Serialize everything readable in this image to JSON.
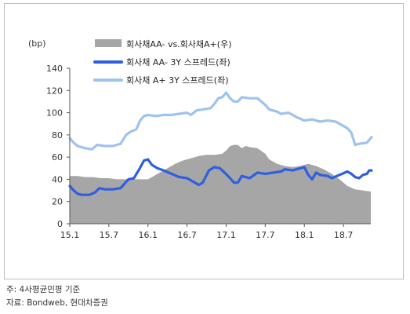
{
  "chart_data": {
    "type": "line",
    "unit_label": "(bp)",
    "y_ticks": [
      0,
      20,
      40,
      60,
      80,
      100,
      120,
      140
    ],
    "ylim": [
      0,
      140
    ],
    "x_ticks": [
      "15.1",
      "15.7",
      "16.1",
      "16.7",
      "17.1",
      "17.7",
      "18.1",
      "18.7"
    ],
    "x_tick_positions": [
      2015.0,
      2015.5,
      2016.0,
      2016.5,
      2017.0,
      2017.5,
      2018.0,
      2018.5
    ],
    "xlim": [
      2015.0,
      2018.85
    ],
    "legend_position": "top-center",
    "series": [
      {
        "name": "회사채AA- vs.회사채A+(우)",
        "kind": "area",
        "color": "#a6a6a6",
        "points": [
          [
            2015.0,
            43
          ],
          [
            2015.1,
            43
          ],
          [
            2015.2,
            42
          ],
          [
            2015.3,
            42
          ],
          [
            2015.4,
            41
          ],
          [
            2015.5,
            41
          ],
          [
            2015.6,
            40
          ],
          [
            2015.7,
            40
          ],
          [
            2015.8,
            40
          ],
          [
            2015.9,
            40
          ],
          [
            2016.0,
            40
          ],
          [
            2016.05,
            42
          ],
          [
            2016.15,
            46
          ],
          [
            2016.25,
            50
          ],
          [
            2016.35,
            54
          ],
          [
            2016.45,
            57
          ],
          [
            2016.55,
            59
          ],
          [
            2016.65,
            61
          ],
          [
            2016.75,
            62
          ],
          [
            2016.85,
            62
          ],
          [
            2016.95,
            63
          ],
          [
            2017.0,
            66
          ],
          [
            2017.05,
            70
          ],
          [
            2017.1,
            71
          ],
          [
            2017.15,
            71
          ],
          [
            2017.2,
            68
          ],
          [
            2017.25,
            70
          ],
          [
            2017.3,
            69
          ],
          [
            2017.4,
            68
          ],
          [
            2017.5,
            63
          ],
          [
            2017.55,
            58
          ],
          [
            2017.65,
            54
          ],
          [
            2017.75,
            52
          ],
          [
            2017.85,
            51
          ],
          [
            2017.95,
            52
          ],
          [
            2018.05,
            54
          ],
          [
            2018.15,
            52
          ],
          [
            2018.25,
            49
          ],
          [
            2018.35,
            45
          ],
          [
            2018.45,
            40
          ],
          [
            2018.55,
            34
          ],
          [
            2018.65,
            31
          ],
          [
            2018.75,
            30
          ],
          [
            2018.85,
            29
          ]
        ]
      },
      {
        "name": "회사채 AA- 3Y 스프레드(좌)",
        "kind": "line",
        "color": "#2f5fe0",
        "points": [
          [
            2015.0,
            34
          ],
          [
            2015.05,
            30
          ],
          [
            2015.1,
            27
          ],
          [
            2015.15,
            26
          ],
          [
            2015.25,
            26
          ],
          [
            2015.32,
            28
          ],
          [
            2015.38,
            32
          ],
          [
            2015.45,
            31
          ],
          [
            2015.55,
            31
          ],
          [
            2015.65,
            32
          ],
          [
            2015.75,
            40
          ],
          [
            2015.82,
            41
          ],
          [
            2015.88,
            48
          ],
          [
            2015.95,
            57
          ],
          [
            2016.0,
            58
          ],
          [
            2016.05,
            53
          ],
          [
            2016.12,
            50
          ],
          [
            2016.2,
            48
          ],
          [
            2016.3,
            45
          ],
          [
            2016.4,
            42
          ],
          [
            2016.5,
            41
          ],
          [
            2016.55,
            39
          ],
          [
            2016.65,
            35
          ],
          [
            2016.7,
            37
          ],
          [
            2016.78,
            48
          ],
          [
            2016.85,
            51
          ],
          [
            2016.92,
            50
          ],
          [
            2016.98,
            46
          ],
          [
            2017.05,
            41
          ],
          [
            2017.1,
            37
          ],
          [
            2017.15,
            37
          ],
          [
            2017.2,
            43
          ],
          [
            2017.3,
            41
          ],
          [
            2017.4,
            46
          ],
          [
            2017.5,
            45
          ],
          [
            2017.6,
            46
          ],
          [
            2017.7,
            47
          ],
          [
            2017.75,
            49
          ],
          [
            2017.85,
            48
          ],
          [
            2017.95,
            50
          ],
          [
            2018.0,
            51
          ],
          [
            2018.05,
            44
          ],
          [
            2018.1,
            40
          ],
          [
            2018.15,
            46
          ],
          [
            2018.2,
            44
          ],
          [
            2018.3,
            43
          ],
          [
            2018.35,
            41
          ],
          [
            2018.45,
            44
          ],
          [
            2018.55,
            47
          ],
          [
            2018.6,
            45
          ],
          [
            2018.65,
            42
          ],
          [
            2018.7,
            41
          ],
          [
            2018.75,
            44
          ],
          [
            2018.8,
            45
          ],
          [
            2018.83,
            48
          ],
          [
            2018.86,
            48
          ]
        ]
      },
      {
        "name": "회사채 A+ 3Y 스프레드(좌)",
        "kind": "line",
        "color": "#9ec3ee",
        "points": [
          [
            2015.0,
            77
          ],
          [
            2015.05,
            73
          ],
          [
            2015.1,
            70
          ],
          [
            2015.2,
            68
          ],
          [
            2015.28,
            67
          ],
          [
            2015.35,
            71
          ],
          [
            2015.45,
            70
          ],
          [
            2015.55,
            70
          ],
          [
            2015.65,
            72
          ],
          [
            2015.72,
            80
          ],
          [
            2015.78,
            83
          ],
          [
            2015.85,
            85
          ],
          [
            2015.9,
            93
          ],
          [
            2015.95,
            97
          ],
          [
            2016.0,
            98
          ],
          [
            2016.1,
            97
          ],
          [
            2016.2,
            98
          ],
          [
            2016.3,
            98
          ],
          [
            2016.4,
            99
          ],
          [
            2016.5,
            100
          ],
          [
            2016.55,
            98
          ],
          [
            2016.62,
            102
          ],
          [
            2016.7,
            103
          ],
          [
            2016.8,
            104
          ],
          [
            2016.85,
            108
          ],
          [
            2016.9,
            113
          ],
          [
            2016.95,
            114
          ],
          [
            2017.0,
            118
          ],
          [
            2017.05,
            113
          ],
          [
            2017.1,
            110
          ],
          [
            2017.15,
            110
          ],
          [
            2017.2,
            114
          ],
          [
            2017.3,
            113
          ],
          [
            2017.4,
            113
          ],
          [
            2017.45,
            110
          ],
          [
            2017.5,
            107
          ],
          [
            2017.55,
            103
          ],
          [
            2017.65,
            101
          ],
          [
            2017.7,
            99
          ],
          [
            2017.8,
            100
          ],
          [
            2017.9,
            96
          ],
          [
            2018.0,
            93
          ],
          [
            2018.1,
            94
          ],
          [
            2018.2,
            92
          ],
          [
            2018.3,
            93
          ],
          [
            2018.4,
            92
          ],
          [
            2018.45,
            90
          ],
          [
            2018.55,
            86
          ],
          [
            2018.6,
            82
          ],
          [
            2018.65,
            71
          ],
          [
            2018.7,
            72
          ],
          [
            2018.8,
            73
          ],
          [
            2018.86,
            78
          ]
        ]
      }
    ]
  },
  "notes": {
    "basis": "주: 4사평균민평 기준",
    "source": "자료: Bondweb, 현대차증권"
  }
}
